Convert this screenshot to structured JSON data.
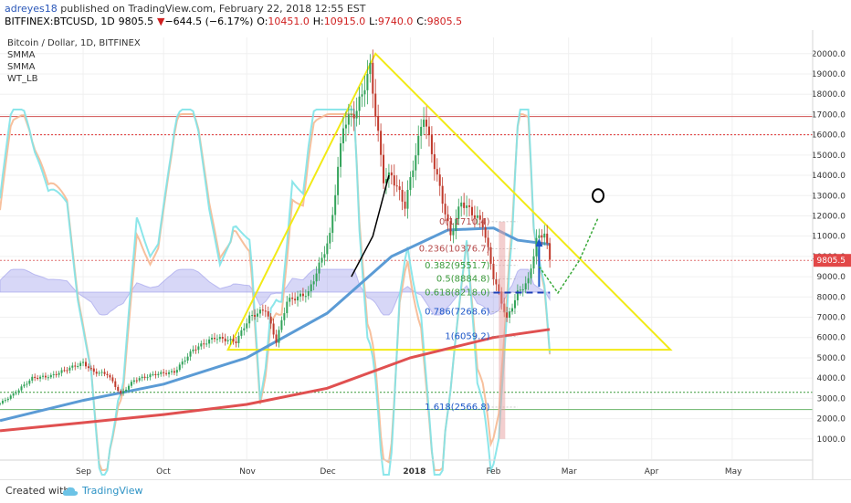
{
  "header": {
    "author": "adreyes18",
    "published_text": " published on TradingView.com, February 22, 2018 12:55 EST",
    "symbol": "BITFINEX:BTCUSD, 1D",
    "price": "9805.5",
    "change_arrow": "▼",
    "change": "−644.5 (−6.17%)",
    "o_label": "O:",
    "o": "10451.0",
    "h_label": "H:",
    "h": "10915.0",
    "l_label": "L:",
    "l": "9740.0",
    "c_label": "C:",
    "c": "9805.5"
  },
  "legend": {
    "title": "Bitcoin / Dollar, 1D, BITFINEX",
    "items": [
      "SMMA",
      "SMMA",
      "WT_LB"
    ]
  },
  "footer": {
    "created_with": "Created with",
    "brand": "TradingView"
  },
  "colors": {
    "up": "#33a35a",
    "down": "#c0392b",
    "smma_fast": "#5b9bd5",
    "smma_slow": "#e05050",
    "wt1": "#7fe3e8",
    "wt2": "#f6b992",
    "triangle": "#f2ea16",
    "fib": "#1c56c8"
  },
  "chart_data": {
    "type": "candlestick",
    "title": "Bitcoin / Dollar, 1D, BITFINEX",
    "price_axis": {
      "ticks": [
        1000,
        2000,
        3000,
        4000,
        5000,
        6000,
        7000,
        8000,
        9000,
        10000,
        11000,
        12000,
        13000,
        14000,
        15000,
        16000,
        17000,
        18000,
        19000,
        20000
      ],
      "range": [
        0,
        20800
      ],
      "current_price": "9805.5"
    },
    "time_axis": {
      "labels": [
        "Sep",
        "Oct",
        "Nov",
        "Dec",
        "2018",
        "Feb",
        "Mar",
        "Apr",
        "May"
      ],
      "range": [
        "2017-08-01",
        "2018-05-31"
      ]
    },
    "price_path": [
      [
        "2017-08-01",
        2750
      ],
      [
        "2017-08-06",
        3200
      ],
      [
        "2017-08-13",
        4000
      ],
      [
        "2017-08-20",
        4100
      ],
      [
        "2017-08-27",
        4500
      ],
      [
        "2017-09-01",
        4750
      ],
      [
        "2017-09-05",
        4300
      ],
      [
        "2017-09-10",
        4200
      ],
      [
        "2017-09-15",
        3200
      ],
      [
        "2017-09-20",
        3900
      ],
      [
        "2017-09-28",
        4200
      ],
      [
        "2017-10-05",
        4300
      ],
      [
        "2017-10-12",
        5400
      ],
      [
        "2017-10-20",
        6000
      ],
      [
        "2017-10-28",
        5800
      ],
      [
        "2017-11-02",
        7000
      ],
      [
        "2017-11-08",
        7400
      ],
      [
        "2017-11-12",
        5800
      ],
      [
        "2017-11-16",
        7800
      ],
      [
        "2017-11-24",
        8200
      ],
      [
        "2017-11-29",
        9900
      ],
      [
        "2017-12-02",
        11000
      ],
      [
        "2017-12-07",
        16500
      ],
      [
        "2017-12-12",
        17200
      ],
      [
        "2017-12-17",
        19300
      ],
      [
        "2017-12-22",
        13800
      ],
      [
        "2017-12-25",
        14000
      ],
      [
        "2017-12-30",
        12500
      ],
      [
        "2018-01-06",
        17000
      ],
      [
        "2018-01-10",
        14500
      ],
      [
        "2018-01-16",
        11000
      ],
      [
        "2018-01-20",
        12700
      ],
      [
        "2018-01-28",
        11600
      ],
      [
        "2018-02-01",
        9000
      ],
      [
        "2018-02-06",
        6900
      ],
      [
        "2018-02-10",
        8200
      ],
      [
        "2018-02-14",
        8800
      ],
      [
        "2018-02-17",
        10800
      ],
      [
        "2018-02-20",
        11200
      ],
      [
        "2018-02-22",
        9805
      ]
    ],
    "smma_fast": [
      [
        "2017-08-01",
        1900
      ],
      [
        "2017-09-01",
        2900
      ],
      [
        "2017-10-01",
        3700
      ],
      [
        "2017-11-01",
        5000
      ],
      [
        "2017-12-01",
        7200
      ],
      [
        "2017-12-25",
        10000
      ],
      [
        "2018-01-15",
        11300
      ],
      [
        "2018-02-01",
        11400
      ],
      [
        "2018-02-10",
        10800
      ],
      [
        "2018-02-22",
        10600
      ]
    ],
    "smma_slow": [
      [
        "2017-08-01",
        1400
      ],
      [
        "2017-09-01",
        1800
      ],
      [
        "2017-10-01",
        2200
      ],
      [
        "2017-11-01",
        2700
      ],
      [
        "2017-12-01",
        3500
      ],
      [
        "2018-01-01",
        5000
      ],
      [
        "2018-02-01",
        6000
      ],
      [
        "2018-02-22",
        6400
      ]
    ],
    "fib_levels": [
      {
        "label": "0(11710.4)",
        "value": 11710.4
      },
      {
        "label": "0.236(10376.7)",
        "value": 10376.7
      },
      {
        "label": "0.382(9551.7)",
        "value": 9551.7
      },
      {
        "label": "0.5(8884.8)",
        "value": 8884.8
      },
      {
        "label": "0.618(8218.0)",
        "value": 8218.0
      },
      {
        "label": "0.786(7268.6)",
        "value": 7268.6
      },
      {
        "label": "1(6059.2)",
        "value": 6059.2
      },
      {
        "label": "1.618(2566.8)",
        "value": 2566.8
      }
    ],
    "hlines": [
      {
        "value": 16900,
        "style": "solid",
        "color": "#d05050"
      },
      {
        "value": 16000,
        "style": "dotted",
        "color": "#e03030"
      },
      {
        "value": 9805.5,
        "style": "dotted",
        "color": "#e07070"
      },
      {
        "value": 3300,
        "style": "dotted",
        "color": "#3a9a3a"
      },
      {
        "value": 2450,
        "style": "solid",
        "color": "#6ab56a"
      }
    ],
    "triangle": [
      [
        "2017-12-19",
        20000
      ],
      [
        "2018-04-08",
        5400
      ],
      [
        "2017-10-25",
        5400
      ]
    ],
    "annotations": [
      {
        "type": "arrow-up",
        "x": "2018-02-18",
        "from": 8500,
        "to": 10800
      },
      {
        "type": "projection-path",
        "points": [
          [
            "2018-02-18",
            9500
          ],
          [
            "2018-02-25",
            8200
          ],
          [
            "2018-03-05",
            9800
          ],
          [
            "2018-03-12",
            11900
          ]
        ]
      },
      {
        "type": "circle",
        "x": "2018-03-12",
        "y": 13000
      },
      {
        "type": "dashed-line",
        "y": 8218,
        "from": "2018-02-01",
        "to": "2018-02-22"
      },
      {
        "type": "trend-curve",
        "points": [
          [
            "2017-12-10",
            9000
          ],
          [
            "2017-12-18",
            11000
          ],
          [
            "2017-12-24",
            14000
          ]
        ]
      }
    ]
  }
}
